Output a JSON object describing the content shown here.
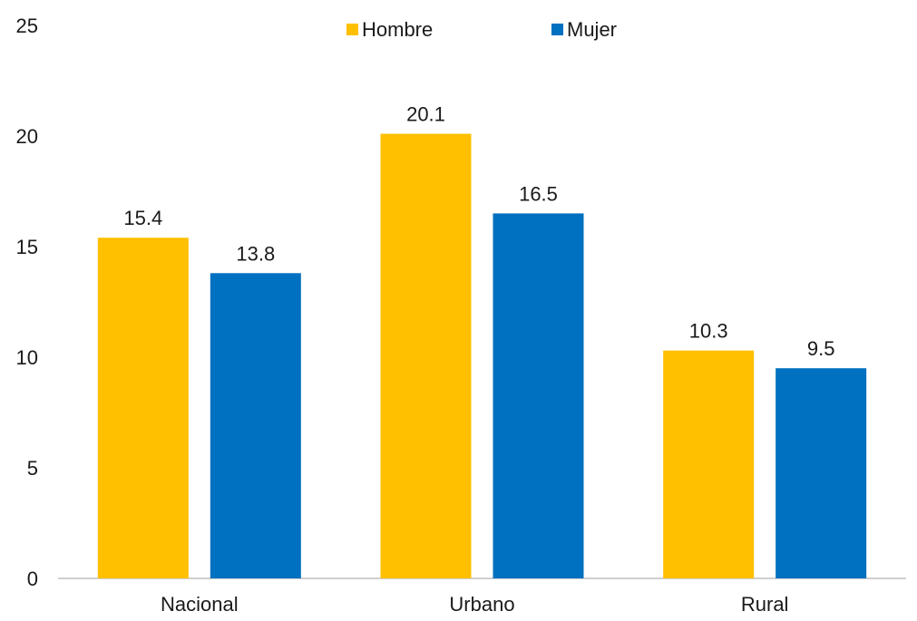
{
  "chart_data": {
    "type": "bar",
    "title": "",
    "xlabel": "",
    "ylabel": "",
    "categories": [
      "Nacional",
      "Urbano",
      "Rural"
    ],
    "series": [
      {
        "name": "Hombre",
        "values": [
          15.4,
          20.1,
          10.3
        ],
        "color": "#FFC000"
      },
      {
        "name": "Mujer",
        "values": [
          13.8,
          16.5,
          9.5
        ],
        "color": "#0070C0"
      }
    ],
    "ylim": [
      0,
      25
    ],
    "yticks": [
      0,
      5,
      10,
      15,
      20,
      25
    ],
    "grid": false,
    "legend": "top-center",
    "data_labels": true
  }
}
